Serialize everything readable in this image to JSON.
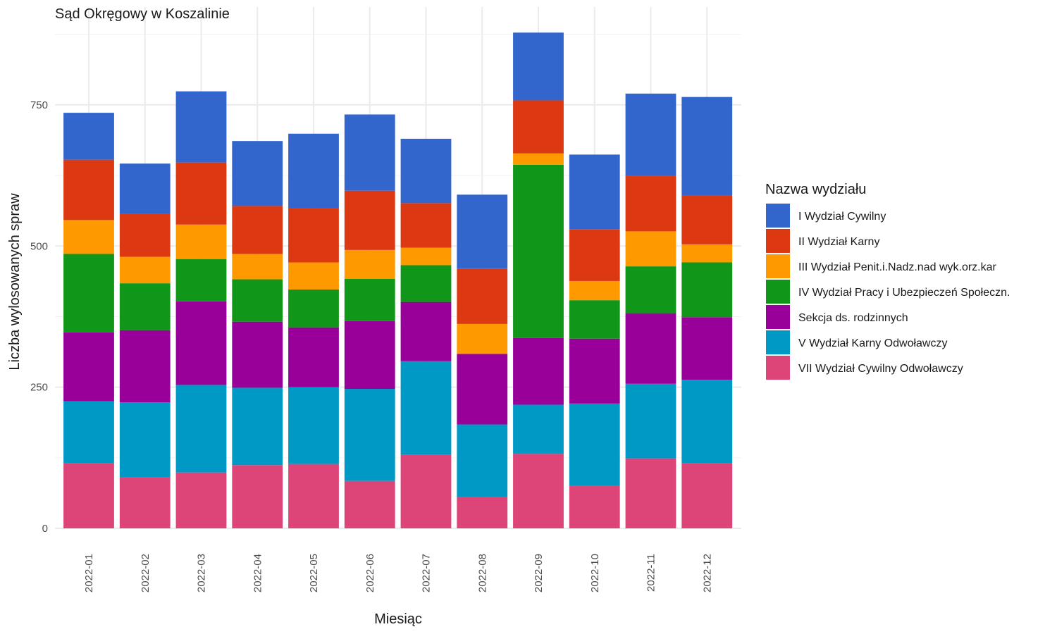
{
  "chart_data": {
    "type": "bar",
    "stacked": true,
    "title": "Sąd Okręgowy w Koszalinie",
    "xlabel": "Miesiąc",
    "ylabel": "Liczba wylosowanych spraw",
    "ylim": [
      0,
      920
    ],
    "yticks": [
      0,
      250,
      500,
      750
    ],
    "grid": true,
    "legend_position": "right",
    "legend_title": "Nazwa wydziału",
    "categories": [
      "2022-01",
      "2022-02",
      "2022-03",
      "2022-04",
      "2022-05",
      "2022-06",
      "2022-07",
      "2022-08",
      "2022-09",
      "2022-10",
      "2022-11",
      "2022-12"
    ],
    "series": [
      {
        "name": "I Wydział Cywilny",
        "color": "#3366CC",
        "values": [
          83,
          89,
          126,
          115,
          132,
          135,
          114,
          131,
          120,
          132,
          145,
          175
        ]
      },
      {
        "name": "II Wydział Karny",
        "color": "#DC3912",
        "values": [
          107,
          76,
          110,
          85,
          96,
          105,
          79,
          98,
          94,
          92,
          99,
          86
        ]
      },
      {
        "name": "III Wydział Penit.i.Nadz.nad wyk.orz.kar",
        "color": "#FF9900",
        "values": [
          60,
          47,
          61,
          45,
          48,
          51,
          31,
          53,
          20,
          34,
          62,
          32
        ]
      },
      {
        "name": "IV Wydział Pracy i Ubezpieczeń Społeczn.",
        "color": "#109618",
        "values": [
          139,
          83,
          75,
          75,
          67,
          75,
          65,
          0,
          307,
          68,
          83,
          97
        ]
      },
      {
        "name": "Sekcja ds. rodzinnych",
        "color": "#990099",
        "values": [
          122,
          128,
          148,
          117,
          106,
          120,
          105,
          125,
          118,
          115,
          125,
          111
        ]
      },
      {
        "name": "V Wydział Karny Odwoławczy",
        "color": "#0099C6",
        "values": [
          110,
          132,
          155,
          137,
          136,
          163,
          166,
          129,
          87,
          146,
          132,
          148
        ]
      },
      {
        "name": "VII Wydział Cywilny Odwoławczy",
        "color": "#DD4477",
        "values": [
          115,
          91,
          99,
          112,
          114,
          84,
          130,
          55,
          132,
          75,
          124,
          115
        ]
      }
    ]
  }
}
